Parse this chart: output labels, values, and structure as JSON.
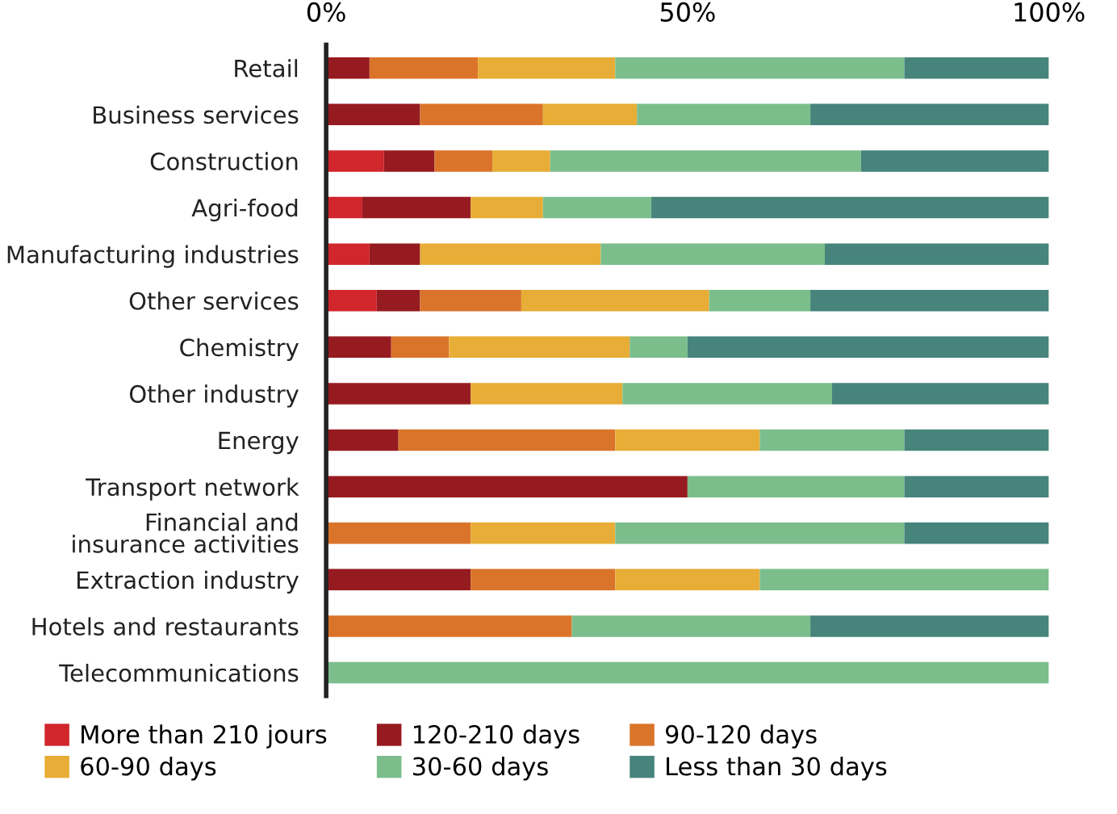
{
  "chart_data": {
    "type": "bar",
    "orientation": "horizontal",
    "stacked": true,
    "categories": [
      "Retail",
      "Business services",
      "Construction",
      "Agri-food",
      "Manufacturing industries",
      "Other services",
      "Chemistry",
      "Other industry",
      "Energy",
      "Transport network",
      "Financial and\ninsurance activities",
      "Extraction industry",
      "Hotels and restaurants",
      "Telecommunications"
    ],
    "series": [
      {
        "name": "More than 210 jours",
        "color": "#d0262c",
        "values": [
          0,
          0,
          8,
          5,
          6,
          7,
          0,
          0,
          0,
          0,
          0,
          0,
          0,
          0
        ]
      },
      {
        "name": "120-210 days",
        "color": "#961b20",
        "values": [
          6,
          13,
          7,
          15,
          7,
          6,
          9,
          20,
          10,
          50,
          0,
          20,
          0,
          0
        ]
      },
      {
        "name": "90-120 days",
        "color": "#da742b",
        "values": [
          15,
          17,
          8,
          0,
          0,
          14,
          8,
          0,
          30,
          0,
          20,
          20,
          34,
          0
        ]
      },
      {
        "name": "60-90 days",
        "color": "#e7ad36",
        "values": [
          19,
          13,
          8,
          10,
          25,
          26,
          25,
          21,
          20,
          0,
          20,
          20,
          0,
          0
        ]
      },
      {
        "name": "30-60 days",
        "color": "#7bbe8c",
        "values": [
          40,
          24,
          43,
          15,
          31,
          14,
          8,
          29,
          20,
          30,
          40,
          40,
          33,
          100
        ]
      },
      {
        "name": "Less than 30 days",
        "color": "#46847c",
        "values": [
          20,
          33,
          26,
          55,
          31,
          33,
          50,
          30,
          20,
          20,
          20,
          0,
          33,
          0
        ]
      }
    ],
    "xlim": [
      0,
      100
    ],
    "xticks": [
      {
        "value": 0,
        "label": "0%"
      },
      {
        "value": 50,
        "label": "50%"
      },
      {
        "value": 100,
        "label": "100%"
      }
    ],
    "grid": false,
    "legend": "bottom"
  }
}
